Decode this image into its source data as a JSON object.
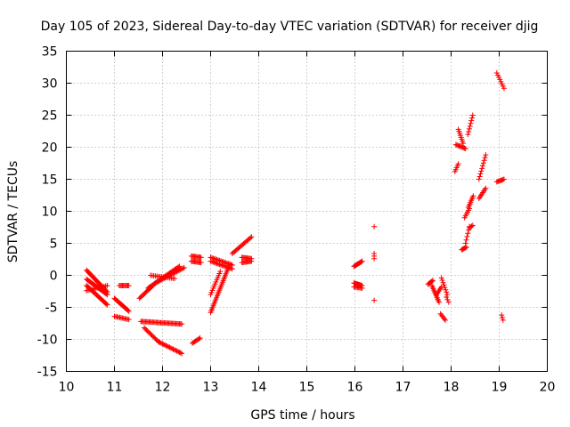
{
  "chart_data": {
    "type": "scatter",
    "title": "Day 105 of 2023, Sidereal Day-to-day VTEC variation (SDTVAR) for receiver djig",
    "xlabel": "GPS time / hours",
    "ylabel": "SDTVAR / TECUs",
    "xlim": [
      10,
      20
    ],
    "ylim": [
      -15,
      35
    ],
    "xticks": [
      10,
      11,
      12,
      13,
      14,
      15,
      16,
      17,
      18,
      19,
      20
    ],
    "yticks": [
      -15,
      -10,
      -5,
      0,
      5,
      10,
      15,
      20,
      25,
      30,
      35
    ],
    "grid": true,
    "marker": "+",
    "color": "#ff0000",
    "segments": [
      {
        "x0": 10.42,
        "y0": 0.8,
        "x1": 10.85,
        "y1": -2.6,
        "n": 26
      },
      {
        "x0": 10.42,
        "y0": -0.6,
        "x1": 10.85,
        "y1": -3.0,
        "n": 24
      },
      {
        "x0": 10.42,
        "y0": -1.6,
        "x1": 10.85,
        "y1": -4.6,
        "n": 24
      },
      {
        "x0": 10.42,
        "y0": -2.4,
        "x1": 10.85,
        "y1": -1.6,
        "n": 14
      },
      {
        "x0": 11.1,
        "y0": -1.6,
        "x1": 11.3,
        "y1": -1.6,
        "n": 10
      },
      {
        "x0": 11.0,
        "y0": -3.6,
        "x1": 11.3,
        "y1": -5.6,
        "n": 16
      },
      {
        "x0": 11.0,
        "y0": -6.4,
        "x1": 11.3,
        "y1": -6.9,
        "n": 12
      },
      {
        "x0": 11.52,
        "y0": -3.6,
        "x1": 11.8,
        "y1": -1.6,
        "n": 14
      },
      {
        "x0": 11.55,
        "y0": -7.2,
        "x1": 12.4,
        "y1": -7.6,
        "n": 36
      },
      {
        "x0": 11.62,
        "y0": -8.2,
        "x1": 11.92,
        "y1": -10.4,
        "n": 14
      },
      {
        "x0": 11.92,
        "y0": -10.4,
        "x1": 12.4,
        "y1": -12.2,
        "n": 20
      },
      {
        "x0": 11.7,
        "y0": -2.0,
        "x1": 12.35,
        "y1": 1.4,
        "n": 30
      },
      {
        "x0": 11.85,
        "y0": -1.2,
        "x1": 12.45,
        "y1": 1.2,
        "n": 24
      },
      {
        "x0": 11.75,
        "y0": 0.0,
        "x1": 12.25,
        "y1": -0.5,
        "n": 16
      },
      {
        "x0": 12.6,
        "y0": 3.0,
        "x1": 12.8,
        "y1": 2.8,
        "n": 10
      },
      {
        "x0": 12.6,
        "y0": 2.2,
        "x1": 12.8,
        "y1": 2.0,
        "n": 10
      },
      {
        "x0": 12.62,
        "y0": -10.6,
        "x1": 12.78,
        "y1": -9.8,
        "n": 8
      },
      {
        "x0": 13.0,
        "y0": -5.8,
        "x1": 13.4,
        "y1": 1.8,
        "n": 30
      },
      {
        "x0": 13.0,
        "y0": -3.0,
        "x1": 13.2,
        "y1": 0.6,
        "n": 12
      },
      {
        "x0": 13.0,
        "y0": 2.8,
        "x1": 13.45,
        "y1": 1.6,
        "n": 18
      },
      {
        "x0": 13.0,
        "y0": 2.2,
        "x1": 13.45,
        "y1": 1.0,
        "n": 18
      },
      {
        "x0": 13.45,
        "y0": 3.4,
        "x1": 13.85,
        "y1": 6.0,
        "n": 18
      },
      {
        "x0": 13.65,
        "y0": 2.8,
        "x1": 13.85,
        "y1": 2.6,
        "n": 10
      },
      {
        "x0": 13.65,
        "y0": 2.0,
        "x1": 13.85,
        "y1": 2.2,
        "n": 10
      },
      {
        "x0": 15.98,
        "y0": 1.4,
        "x1": 16.15,
        "y1": 2.2,
        "n": 10
      },
      {
        "x0": 15.98,
        "y0": -1.2,
        "x1": 16.15,
        "y1": -1.6,
        "n": 10
      },
      {
        "x0": 15.98,
        "y0": -1.8,
        "x1": 16.15,
        "y1": -2.0,
        "n": 8
      },
      {
        "x0": 16.4,
        "y0": 7.6,
        "x1": 16.4,
        "y1": 7.6,
        "n": 1
      },
      {
        "x0": 16.4,
        "y0": 2.6,
        "x1": 16.4,
        "y1": 3.4,
        "n": 3
      },
      {
        "x0": 16.4,
        "y0": -3.9,
        "x1": 16.4,
        "y1": -3.9,
        "n": 1
      },
      {
        "x0": 17.52,
        "y0": -1.4,
        "x1": 17.62,
        "y1": -0.8,
        "n": 6
      },
      {
        "x0": 17.6,
        "y0": -1.6,
        "x1": 17.75,
        "y1": -4.2,
        "n": 12
      },
      {
        "x0": 17.7,
        "y0": -3.0,
        "x1": 17.8,
        "y1": -1.8,
        "n": 6
      },
      {
        "x0": 17.8,
        "y0": -0.4,
        "x1": 17.92,
        "y1": -3.0,
        "n": 8
      },
      {
        "x0": 17.78,
        "y0": -6.0,
        "x1": 17.88,
        "y1": -7.0,
        "n": 6
      },
      {
        "x0": 17.9,
        "y0": -3.4,
        "x1": 17.95,
        "y1": -4.2,
        "n": 3
      },
      {
        "x0": 18.08,
        "y0": 16.2,
        "x1": 18.15,
        "y1": 17.4,
        "n": 5
      },
      {
        "x0": 18.1,
        "y0": 20.4,
        "x1": 18.3,
        "y1": 19.8,
        "n": 10
      },
      {
        "x0": 18.15,
        "y0": 22.8,
        "x1": 18.25,
        "y1": 20.6,
        "n": 8
      },
      {
        "x0": 18.35,
        "y0": 22.0,
        "x1": 18.45,
        "y1": 25.0,
        "n": 8
      },
      {
        "x0": 18.22,
        "y0": 4.0,
        "x1": 18.32,
        "y1": 4.4,
        "n": 6
      },
      {
        "x0": 18.3,
        "y0": 5.0,
        "x1": 18.38,
        "y1": 7.6,
        "n": 6
      },
      {
        "x0": 18.38,
        "y0": 7.4,
        "x1": 18.45,
        "y1": 7.8,
        "n": 4
      },
      {
        "x0": 18.28,
        "y0": 9.0,
        "x1": 18.38,
        "y1": 10.4,
        "n": 6
      },
      {
        "x0": 18.36,
        "y0": 10.6,
        "x1": 18.46,
        "y1": 12.4,
        "n": 8
      },
      {
        "x0": 18.58,
        "y0": 15.0,
        "x1": 18.72,
        "y1": 18.8,
        "n": 10
      },
      {
        "x0": 18.58,
        "y0": 12.0,
        "x1": 18.72,
        "y1": 13.6,
        "n": 8
      },
      {
        "x0": 18.95,
        "y0": 14.6,
        "x1": 19.1,
        "y1": 15.0,
        "n": 8
      },
      {
        "x0": 18.95,
        "y0": 31.6,
        "x1": 19.1,
        "y1": 29.2,
        "n": 8
      },
      {
        "x0": 19.05,
        "y0": -6.2,
        "x1": 19.08,
        "y1": -7.0,
        "n": 3
      }
    ]
  }
}
